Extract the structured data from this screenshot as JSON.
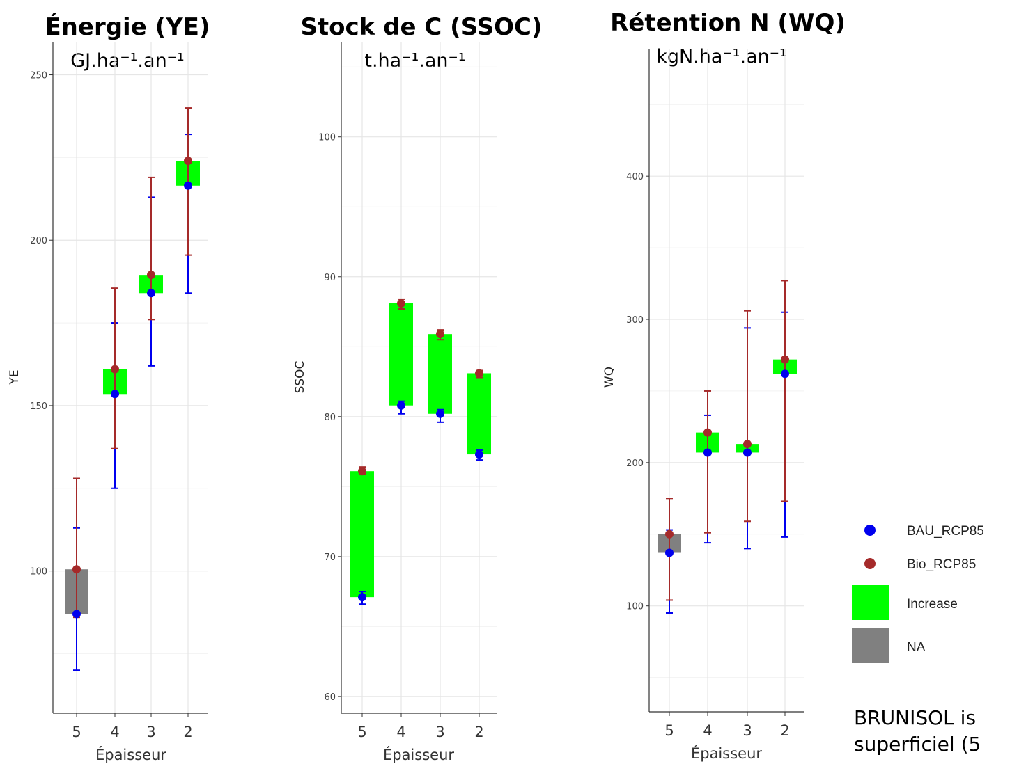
{
  "colors": {
    "bau": "#0000ee",
    "bio": "#a52a2a",
    "increase": "#00ff00",
    "na": "#808080",
    "grid_major": "#e6e6e6",
    "grid_minor": "#f2f2f2",
    "axis": "#333333"
  },
  "legend": {
    "items": [
      {
        "label": "BAU_RCP85",
        "kind": "point",
        "color": "#0000ee"
      },
      {
        "label": "Bio_RCP85",
        "kind": "point",
        "color": "#a52a2a"
      },
      {
        "label": "Increase",
        "kind": "box",
        "color": "#00ff00"
      },
      {
        "label": "NA",
        "kind": "box",
        "color": "#808080"
      }
    ]
  },
  "caption": {
    "line1": "BRUNISOL is",
    "line2": "superficiel (5"
  },
  "chart_data": [
    {
      "type": "range-point",
      "title": "Énergie (YE)",
      "unit": "GJ.ha⁻¹.an⁻¹",
      "ylabel": "YE",
      "xlabel": "Épaisseur",
      "categories": [
        "5",
        "4",
        "3",
        "2"
      ],
      "ylim": [
        57,
        260
      ],
      "yticks": [
        100,
        150,
        200,
        250
      ],
      "grid": true,
      "series": [
        {
          "name": "BAU_RCP85",
          "values": [
            87,
            153.5,
            184,
            216.5
          ],
          "err_low": [
            70,
            125,
            162,
            184
          ],
          "err_high": [
            113,
            175,
            213,
            232
          ]
        },
        {
          "name": "Bio_RCP85",
          "values": [
            100.5,
            161,
            189.5,
            224
          ],
          "err_low": [
            86,
            137,
            176,
            195.5
          ],
          "err_high": [
            128,
            185.5,
            219,
            240
          ]
        }
      ],
      "boxes": [
        {
          "low": 87,
          "high": 100.5,
          "status": "NA"
        },
        {
          "low": 153.5,
          "high": 161,
          "status": "Increase"
        },
        {
          "low": 184,
          "high": 189.5,
          "status": "Increase"
        },
        {
          "low": 216.5,
          "high": 224,
          "status": "Increase"
        }
      ]
    },
    {
      "type": "range-point",
      "title": "Stock de C (SSOC)",
      "unit": "t.ha⁻¹.an⁻¹",
      "ylabel": "SSOC",
      "xlabel": "Épaisseur",
      "categories": [
        "5",
        "4",
        "3",
        "2"
      ],
      "ylim": [
        58.8,
        106.8
      ],
      "yticks": [
        60,
        70,
        80,
        90,
        100
      ],
      "grid": true,
      "series": [
        {
          "name": "BAU_RCP85",
          "values": [
            67.1,
            80.8,
            80.2,
            77.3
          ],
          "err_low": [
            66.6,
            80.2,
            79.6,
            76.9
          ],
          "err_high": [
            67.5,
            81.1,
            80.5,
            77.6
          ]
        },
        {
          "name": "Bio_RCP85",
          "values": [
            76.1,
            88.1,
            85.9,
            83.1
          ],
          "err_low": [
            75.9,
            87.7,
            85.5,
            82.8
          ],
          "err_high": [
            76.4,
            88.4,
            86.2,
            83.3
          ]
        }
      ],
      "boxes": [
        {
          "low": 67.1,
          "high": 76.1,
          "status": "Increase"
        },
        {
          "low": 80.8,
          "high": 88.1,
          "status": "Increase"
        },
        {
          "low": 80.2,
          "high": 85.9,
          "status": "Increase"
        },
        {
          "low": 77.3,
          "high": 83.1,
          "status": "Increase"
        }
      ]
    },
    {
      "type": "range-point",
      "title": "Rétention N (WQ)",
      "unit": "kgN.ha⁻¹.an⁻¹",
      "ylabel": "WQ",
      "xlabel": "Épaisseur",
      "categories": [
        "5",
        "4",
        "3",
        "2"
      ],
      "ylim": [
        26,
        489
      ],
      "yticks": [
        100,
        200,
        300,
        400
      ],
      "grid": true,
      "series": [
        {
          "name": "BAU_RCP85",
          "values": [
            137,
            207,
            207,
            262
          ],
          "err_low": [
            95,
            144,
            140,
            148
          ],
          "err_high": [
            153,
            233,
            294,
            305
          ]
        },
        {
          "name": "Bio_RCP85",
          "values": [
            150,
            221,
            213,
            272
          ],
          "err_low": [
            104,
            151,
            159,
            173
          ],
          "err_high": [
            175,
            250,
            306,
            327
          ]
        }
      ],
      "boxes": [
        {
          "low": 137,
          "high": 150,
          "status": "NA"
        },
        {
          "low": 207,
          "high": 221,
          "status": "Increase"
        },
        {
          "low": 207,
          "high": 213,
          "status": "Increase"
        },
        {
          "low": 262,
          "high": 272,
          "status": "Increase"
        }
      ]
    }
  ]
}
